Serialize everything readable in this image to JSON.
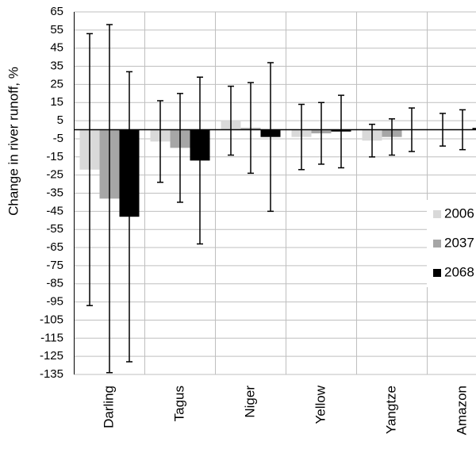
{
  "chart_data": {
    "type": "bar",
    "y_label": "Change in river runoff, %",
    "categories": [
      "Darling",
      "Tagus",
      "Niger",
      "Yellow",
      "Yangtze",
      "Amazon"
    ],
    "series": [
      {
        "name": "2006",
        "color": "#d9d9d9",
        "values": [
          -22,
          -6.5,
          5,
          -4,
          -6,
          0
        ],
        "errors": [
          75,
          22.5,
          19,
          18,
          9,
          9
        ]
      },
      {
        "name": "2037",
        "color": "#a6a6a6",
        "values": [
          -38,
          -10,
          1,
          -2,
          -4,
          0
        ],
        "errors": [
          96,
          30,
          25,
          17,
          10,
          11
        ]
      },
      {
        "name": "2068",
        "color": "#000000",
        "values": [
          -48,
          -17,
          -4,
          -1,
          0,
          1
        ],
        "errors": [
          80,
          46,
          41,
          20,
          12,
          null
        ]
      }
    ],
    "ylim": [
      -135,
      65
    ],
    "yticks": [
      -135,
      -125,
      -115,
      -105,
      -95,
      -85,
      -75,
      -65,
      -55,
      -45,
      -35,
      -25,
      -15,
      -5,
      5,
      15,
      25,
      35,
      45,
      55,
      65
    ],
    "grid": true
  }
}
